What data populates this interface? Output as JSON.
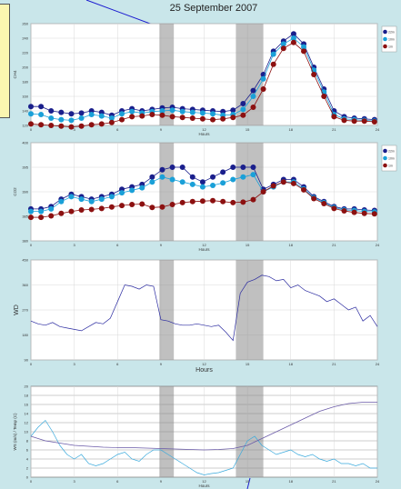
{
  "title": "25 September 2007",
  "colors": {
    "background": "#c9e6ea",
    "dark_blue": "#1a1f8c",
    "mid_blue": "#1aa0d8",
    "dark_red": "#8c1010",
    "wd_line": "#2a2aa0",
    "ws_line": "#39a9dc",
    "temp_line": "#6a5aa8",
    "annotation_line": "#1a1ad0",
    "shade": "#8c8c8c"
  },
  "chart_data": [
    {
      "type": "line",
      "xlabel": "Hours",
      "ylabel": "CH4",
      "xlim": [
        0,
        24
      ],
      "ylim": [
        120,
        260
      ],
      "xticks": [
        0,
        3,
        6,
        9,
        12,
        15,
        18,
        21,
        24
      ],
      "yticks": [
        120,
        140,
        160,
        180,
        200,
        220,
        240,
        260
      ],
      "shaded_intervals": [
        [
          8.9,
          9.9
        ],
        [
          14.2,
          16.1
        ]
      ],
      "legend": {
        "placement": "top-right",
        "labels": [
          "22m",
          "10m",
          "1m"
        ]
      },
      "series": [
        {
          "name": "22m",
          "color": "#1a1f8c",
          "x": [
            0,
            0.7,
            1.4,
            2.1,
            2.8,
            3.5,
            4.2,
            4.9,
            5.6,
            6.3,
            7,
            7.7,
            8.4,
            9.1,
            9.8,
            10.5,
            11.2,
            11.9,
            12.6,
            13.3,
            14,
            14.7,
            15.4,
            16.1,
            16.8,
            17.5,
            18.2,
            18.9,
            19.6,
            20.3,
            21,
            21.7,
            22.4,
            23.1,
            23.8
          ],
          "y": [
            146,
            146,
            140,
            138,
            136,
            137,
            140,
            138,
            134,
            140,
            143,
            140,
            142,
            144,
            145,
            143,
            142,
            141,
            140,
            139,
            141,
            150,
            168,
            190,
            222,
            236,
            246,
            232,
            200,
            170,
            140,
            132,
            130,
            129,
            128
          ]
        },
        {
          "name": "10m",
          "color": "#1aa0d8",
          "x": [
            0,
            0.7,
            1.4,
            2.1,
            2.8,
            3.5,
            4.2,
            4.9,
            5.6,
            6.3,
            7,
            7.7,
            8.4,
            9.1,
            9.8,
            10.5,
            11.2,
            11.9,
            12.6,
            13.3,
            14,
            14.7,
            15.4,
            16.1,
            16.8,
            17.5,
            18.2,
            18.9,
            19.6,
            20.3,
            21,
            21.7,
            22.4,
            23.1,
            23.8
          ],
          "y": [
            136,
            135,
            130,
            128,
            127,
            130,
            135,
            133,
            130,
            136,
            139,
            137,
            139,
            140,
            141,
            139,
            138,
            137,
            136,
            134,
            135,
            142,
            160,
            184,
            218,
            232,
            240,
            228,
            196,
            166,
            135,
            129,
            128,
            127,
            126
          ]
        },
        {
          "name": "1m",
          "color": "#8c1010",
          "x": [
            0,
            0.7,
            1.4,
            2.1,
            2.8,
            3.5,
            4.2,
            4.9,
            5.6,
            6.3,
            7,
            7.7,
            8.4,
            9.1,
            9.8,
            10.5,
            11.2,
            11.9,
            12.6,
            13.3,
            14,
            14.7,
            15.4,
            16.1,
            16.8,
            17.5,
            18.2,
            18.9,
            19.6,
            20.3,
            21,
            21.7,
            22.4,
            23.1,
            23.8
          ],
          "y": [
            122,
            121,
            120,
            119,
            118,
            119,
            121,
            122,
            124,
            128,
            132,
            133,
            135,
            134,
            132,
            131,
            130,
            129,
            128,
            129,
            131,
            134,
            145,
            170,
            204,
            226,
            234,
            222,
            190,
            160,
            132,
            127,
            126,
            126,
            125
          ]
        }
      ]
    },
    {
      "type": "line",
      "xlabel": "Hours",
      "ylabel": "CO2",
      "xlim": [
        0,
        24
      ],
      "ylim": [
        380,
        400
      ],
      "xticks": [
        0,
        3,
        6,
        9,
        12,
        15,
        18,
        21,
        24
      ],
      "yticks": [
        380,
        385,
        390,
        395,
        400
      ],
      "shaded_intervals": [
        [
          8.9,
          9.9
        ],
        [
          14.2,
          16.1
        ]
      ],
      "legend": {
        "placement": "top-right",
        "labels": [
          "22m",
          "10m",
          "1m"
        ]
      },
      "series": [
        {
          "name": "22m",
          "color": "#1a1f8c",
          "x": [
            0,
            0.7,
            1.4,
            2.1,
            2.8,
            3.5,
            4.2,
            4.9,
            5.6,
            6.3,
            7,
            7.7,
            8.4,
            9.1,
            9.8,
            10.5,
            11.2,
            11.9,
            12.6,
            13.3,
            14,
            14.7,
            15.4,
            16.1,
            16.8,
            17.5,
            18.2,
            18.9,
            19.6,
            20.3,
            21,
            21.7,
            22.4,
            23.1,
            23.8
          ],
          "y": [
            386.5,
            386.5,
            387,
            388.5,
            389.5,
            389,
            388.5,
            389,
            389.5,
            390.5,
            391,
            391.5,
            393,
            394.5,
            395,
            395,
            393,
            392,
            393,
            394,
            395,
            395,
            395,
            390.5,
            391.5,
            392.5,
            392.5,
            391,
            389,
            388,
            387,
            386.5,
            386.5,
            386.3,
            386.2
          ]
        },
        {
          "name": "10m",
          "color": "#1aa0d8",
          "x": [
            0,
            0.7,
            1.4,
            2.1,
            2.8,
            3.5,
            4.2,
            4.9,
            5.6,
            6.3,
            7,
            7.7,
            8.4,
            9.1,
            9.8,
            10.5,
            11.2,
            11.9,
            12.6,
            13.3,
            14,
            14.7,
            15.4,
            16.1,
            16.8,
            17.5,
            18.2,
            18.9,
            19.6,
            20.3,
            21,
            21.7,
            22.4,
            23.1,
            23.8
          ],
          "y": [
            386,
            386,
            386.5,
            388,
            389,
            388.5,
            388,
            388.5,
            389,
            389.8,
            390.3,
            390.8,
            392,
            393,
            392.5,
            392,
            391.5,
            391,
            391.3,
            391.8,
            392.5,
            393,
            393.5,
            390,
            391,
            392,
            392,
            390.6,
            388.8,
            387.8,
            386.8,
            386.3,
            386.2,
            386,
            385.9
          ]
        },
        {
          "name": "1m",
          "color": "#8c1010",
          "x": [
            0,
            0.7,
            1.4,
            2.1,
            2.8,
            3.5,
            4.2,
            4.9,
            5.6,
            6.3,
            7,
            7.7,
            8.4,
            9.1,
            9.8,
            10.5,
            11.2,
            11.9,
            12.6,
            13.3,
            14,
            14.7,
            15.4,
            16.1,
            16.8,
            17.5,
            18.2,
            18.9,
            19.6,
            20.3,
            21,
            21.7,
            22.4,
            23.1,
            23.8
          ],
          "y": [
            384.8,
            384.8,
            385.1,
            385.6,
            386,
            386.3,
            386.4,
            386.6,
            386.9,
            387.2,
            387.4,
            387.5,
            386.8,
            386.9,
            387.4,
            387.8,
            388,
            388.1,
            388.2,
            388,
            387.8,
            387.9,
            388.4,
            390,
            391.2,
            392,
            391.7,
            390.4,
            388.6,
            387.6,
            386.6,
            386.1,
            385.8,
            385.6,
            385.5
          ]
        }
      ]
    },
    {
      "type": "line",
      "xlabel": "Hours",
      "ylabel": "WD",
      "xlim": [
        0,
        24
      ],
      "ylim": [
        90,
        450
      ],
      "xticks": [
        0,
        3,
        6,
        9,
        12,
        15,
        18,
        21,
        24
      ],
      "yticks": [
        90,
        180,
        270,
        360,
        450
      ],
      "shaded_intervals": [
        [
          8.9,
          9.9
        ],
        [
          14.2,
          16.1
        ]
      ],
      "series": [
        {
          "name": "",
          "color": "#2a2aa0",
          "x": [
            0,
            0.5,
            1,
            1.5,
            2,
            2.5,
            3,
            3.5,
            4,
            4.5,
            5,
            5.5,
            6,
            6.5,
            7,
            7.5,
            8,
            8.5,
            9,
            9.5,
            10,
            10.5,
            11,
            11.5,
            12,
            12.5,
            13,
            13.5,
            14,
            14.5,
            15,
            15.5,
            16,
            16.5,
            17,
            17.5,
            18,
            18.5,
            19,
            19.5,
            20,
            20.5,
            21,
            21.5,
            22,
            22.5,
            23,
            23.5,
            24
          ],
          "y": [
            230,
            220,
            215,
            225,
            210,
            205,
            200,
            195,
            210,
            225,
            220,
            240,
            300,
            360,
            355,
            345,
            360,
            355,
            235,
            230,
            220,
            215,
            215,
            220,
            215,
            210,
            215,
            190,
            160,
            330,
            370,
            380,
            395,
            390,
            375,
            380,
            350,
            360,
            340,
            330,
            320,
            300,
            310,
            290,
            270,
            280,
            230,
            250,
            210
          ]
        }
      ]
    },
    {
      "type": "line",
      "xlabel": "Hours",
      "ylabel": "WS (m/s) / Temp (C)",
      "xlim": [
        0,
        24
      ],
      "ylim": [
        0,
        20
      ],
      "xticks": [
        0,
        3,
        6,
        9,
        12,
        15,
        18,
        21,
        24
      ],
      "yticks": [
        0,
        2,
        4,
        6,
        8,
        10,
        12,
        14,
        16,
        18,
        20
      ],
      "shaded_intervals": [
        [
          8.9,
          9.9
        ],
        [
          14.2,
          16.1
        ]
      ],
      "series": [
        {
          "name": "",
          "color": "#39a9dc",
          "x": [
            0,
            0.5,
            1,
            1.5,
            2,
            2.5,
            3,
            3.5,
            4,
            4.5,
            5,
            5.5,
            6,
            6.5,
            7,
            7.5,
            8,
            8.5,
            9,
            9.5,
            10,
            10.5,
            11,
            11.5,
            12,
            12.5,
            13,
            13.5,
            14,
            14.5,
            15,
            15.5,
            16,
            16.5,
            17,
            17.5,
            18,
            18.5,
            19,
            19.5,
            20,
            20.5,
            21,
            21.5,
            22,
            22.5,
            23,
            23.5,
            24
          ],
          "y": [
            9,
            11,
            12.5,
            10,
            7,
            5,
            4,
            5,
            3,
            2.5,
            3,
            4,
            5,
            5.5,
            4,
            3.5,
            5,
            6,
            6,
            5,
            4,
            3,
            2,
            1,
            0.5,
            0.8,
            1,
            1.5,
            2,
            5,
            8,
            9,
            7,
            6,
            5,
            5.5,
            6,
            5,
            4.5,
            5,
            4,
            3.5,
            4,
            3,
            3,
            2.5,
            3,
            2,
            2
          ]
        },
        {
          "name": "",
          "color": "#6a5aa8",
          "x": [
            0,
            1,
            2,
            3,
            4,
            5,
            6,
            7,
            8,
            9,
            10,
            11,
            12,
            13,
            14,
            15,
            16,
            17,
            18,
            19,
            20,
            21,
            22,
            23,
            24
          ],
          "y": [
            9,
            8,
            7.5,
            7,
            6.8,
            6.6,
            6.5,
            6.5,
            6.4,
            6.3,
            6.2,
            6.1,
            6.0,
            6.1,
            6.3,
            7,
            8.5,
            10,
            11.5,
            13,
            14.5,
            15.5,
            16.2,
            16.5,
            16.5
          ]
        }
      ]
    }
  ]
}
